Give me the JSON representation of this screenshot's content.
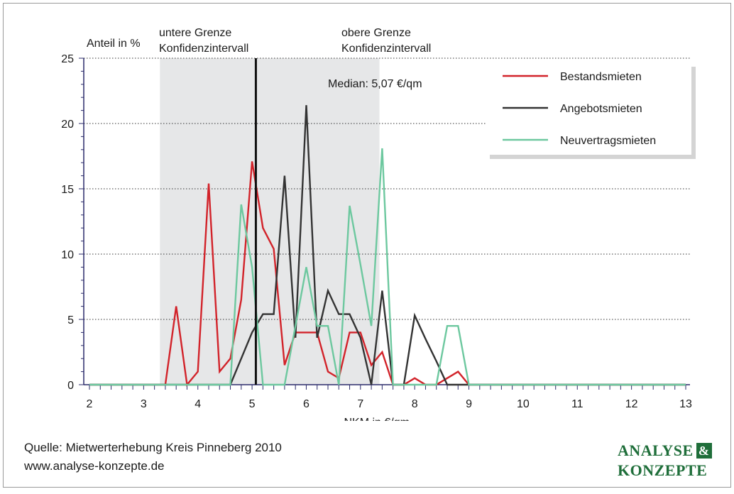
{
  "chart_data": {
    "type": "line",
    "ylabel": "Anteil in %",
    "xlabel": "NKM in €/qm",
    "xlim": [
      2,
      13
    ],
    "ylim": [
      0,
      25
    ],
    "x_ticks": [
      2,
      3,
      4,
      5,
      6,
      7,
      8,
      9,
      10,
      11,
      12,
      13
    ],
    "y_ticks": [
      0,
      5,
      10,
      15,
      20,
      25
    ],
    "grid": "horizontal dotted",
    "legend_position": "top-right",
    "confidence_interval": [
      3.3,
      7.35
    ],
    "median": 5.07,
    "annotations": {
      "lower": [
        "untere Grenze",
        "Konfidenzintervall"
      ],
      "upper": [
        "obere Grenze",
        "Konfidenzintervall"
      ],
      "median": "Median: 5,07 €/qm"
    },
    "series": [
      {
        "name": "Bestandsmieten",
        "color": "#d2232a",
        "x": [
          2,
          3.4,
          3.6,
          3.8,
          4.0,
          4.2,
          4.4,
          4.6,
          4.8,
          5.0,
          5.2,
          5.4,
          5.6,
          5.8,
          6.0,
          6.2,
          6.4,
          6.6,
          6.8,
          7.0,
          7.2,
          7.4,
          7.6,
          7.8,
          8.0,
          8.2,
          8.4,
          8.6,
          8.8,
          9.0,
          13
        ],
        "values": [
          0,
          0,
          6.0,
          0,
          1.0,
          15.4,
          1.0,
          2.0,
          6.5,
          17.1,
          12.0,
          10.4,
          1.5,
          4.0,
          4.0,
          4.0,
          1.0,
          0.5,
          4.0,
          4.0,
          1.5,
          2.5,
          0,
          0,
          0.5,
          0,
          0,
          0.5,
          1.0,
          0,
          0
        ]
      },
      {
        "name": "Angebotsmieten",
        "color": "#333333",
        "x": [
          2,
          4.6,
          5.0,
          5.2,
          5.4,
          5.6,
          5.8,
          6.0,
          6.2,
          6.4,
          6.6,
          6.8,
          7.0,
          7.2,
          7.4,
          7.6,
          7.8,
          8.0,
          8.2,
          8.4,
          8.6,
          13
        ],
        "values": [
          0,
          0,
          4.0,
          5.4,
          5.4,
          16.0,
          3.6,
          21.4,
          3.6,
          7.2,
          5.4,
          5.4,
          3.6,
          0,
          7.2,
          0,
          0,
          5.3,
          3.5,
          1.8,
          0,
          0
        ]
      },
      {
        "name": "Neuvertragsmieten",
        "color": "#6dc89f",
        "x": [
          2,
          4.6,
          4.8,
          5.0,
          5.2,
          5.4,
          5.6,
          5.8,
          6.0,
          6.2,
          6.4,
          6.6,
          6.8,
          7.0,
          7.2,
          7.4,
          7.6,
          8.4,
          8.6,
          8.8,
          9.0,
          13
        ],
        "values": [
          0,
          0,
          13.8,
          9.0,
          0,
          0,
          0,
          4.5,
          9.0,
          4.5,
          4.5,
          0,
          13.7,
          9.2,
          4.5,
          18.1,
          0,
          0,
          4.5,
          4.5,
          0,
          0
        ]
      }
    ]
  },
  "footer": {
    "source_line1": "Quelle: Mietwerterhebung Kreis Pinneberg 2010",
    "source_line2": "www.analyse-konzepte.de"
  },
  "logo": {
    "line1": "ANALYSE",
    "amp": "&",
    "line2": "KONZEPTE"
  }
}
